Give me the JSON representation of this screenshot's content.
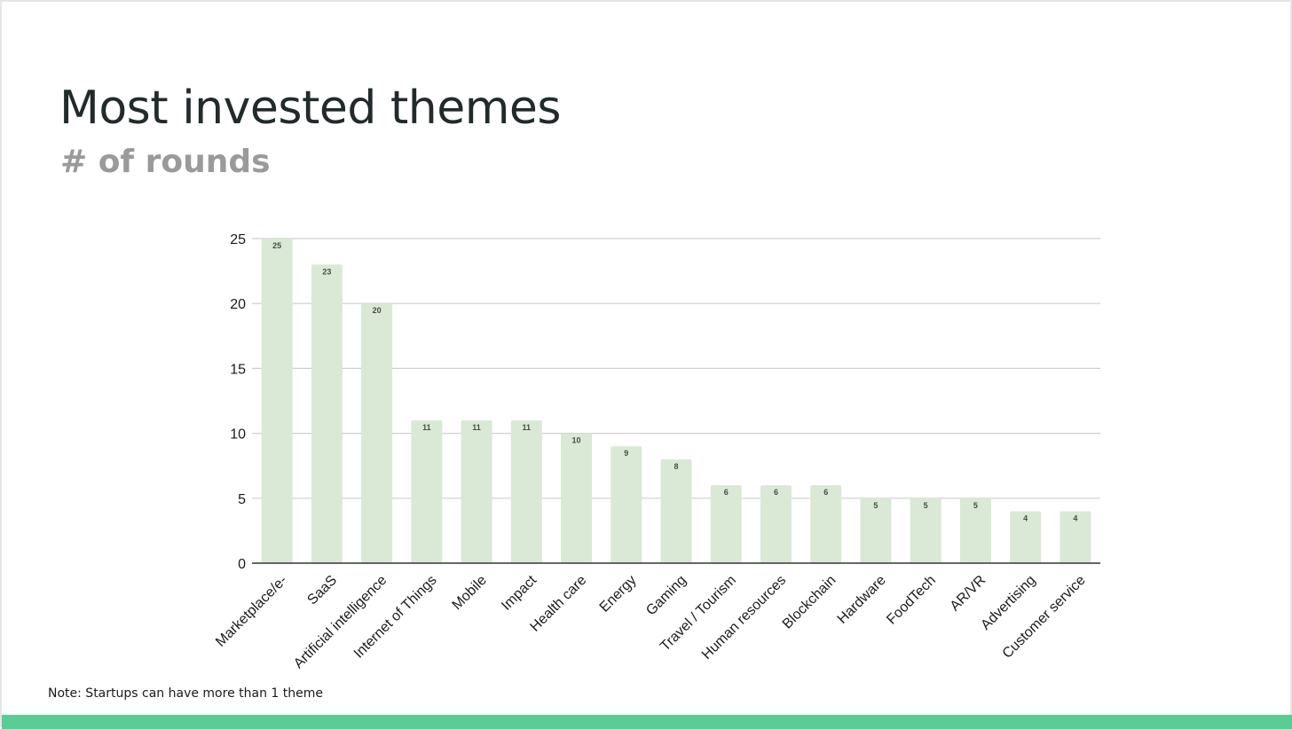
{
  "slide": {
    "title": "Most invested themes",
    "subtitle": "# of rounds",
    "note": "Note: Startups can have more than 1 theme"
  },
  "colors": {
    "bar": "#d9e9d6",
    "grid": "#cfcfcf",
    "axis": "#333333",
    "footer": "#5ccb95"
  },
  "chart_data": {
    "type": "bar",
    "categories": [
      "Marketplace/e-",
      "SaaS",
      "Artificial intelligence",
      "Internet of Things",
      "Mobile",
      "Impact",
      "Health care",
      "Energy",
      "Gaming",
      "Travel / Tourism",
      "Human resources",
      "Blockchain",
      "Hardware",
      "FoodTech",
      "AR/VR",
      "Advertising",
      "Customer service"
    ],
    "values": [
      25,
      23,
      20,
      11,
      11,
      11,
      10,
      9,
      8,
      6,
      6,
      6,
      5,
      5,
      5,
      4,
      4
    ],
    "data_labels": [
      "25",
      "23",
      "20",
      "11",
      "11",
      "11",
      "10",
      "9",
      "8",
      "6",
      "6",
      "6",
      "5",
      "5",
      "5",
      "4",
      "4"
    ],
    "yticks": [
      0,
      5,
      10,
      15,
      20,
      25
    ],
    "ylim": [
      0,
      25
    ],
    "grid": true,
    "legend": "none"
  }
}
